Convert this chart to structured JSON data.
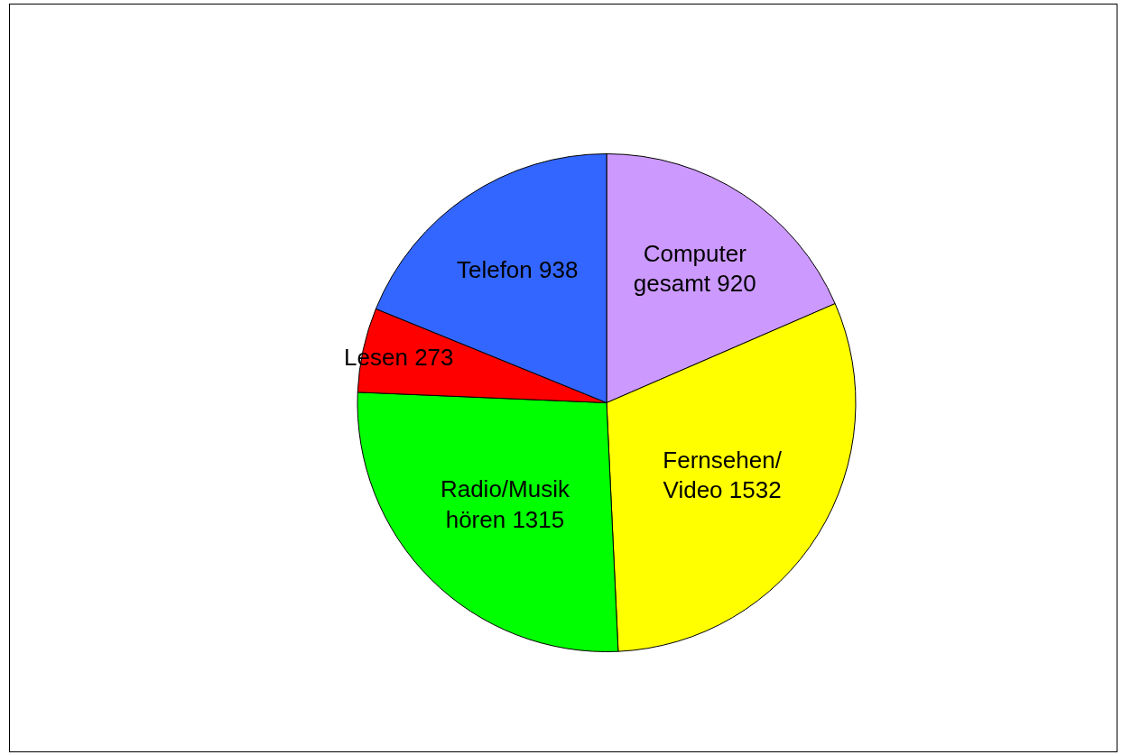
{
  "chart_data": {
    "type": "pie",
    "categories": [
      "Computer gesamt 920",
      "Fernsehen/ Video 1532",
      "Radio/Musik hören 1315",
      "Lesen 273",
      "Telefon 938"
    ],
    "values": [
      920,
      1532,
      1315,
      273,
      938
    ],
    "colors": [
      "#cc99ff",
      "#ffff00",
      "#00ff00",
      "#ff0000",
      "#3366ff"
    ],
    "legend": false
  }
}
